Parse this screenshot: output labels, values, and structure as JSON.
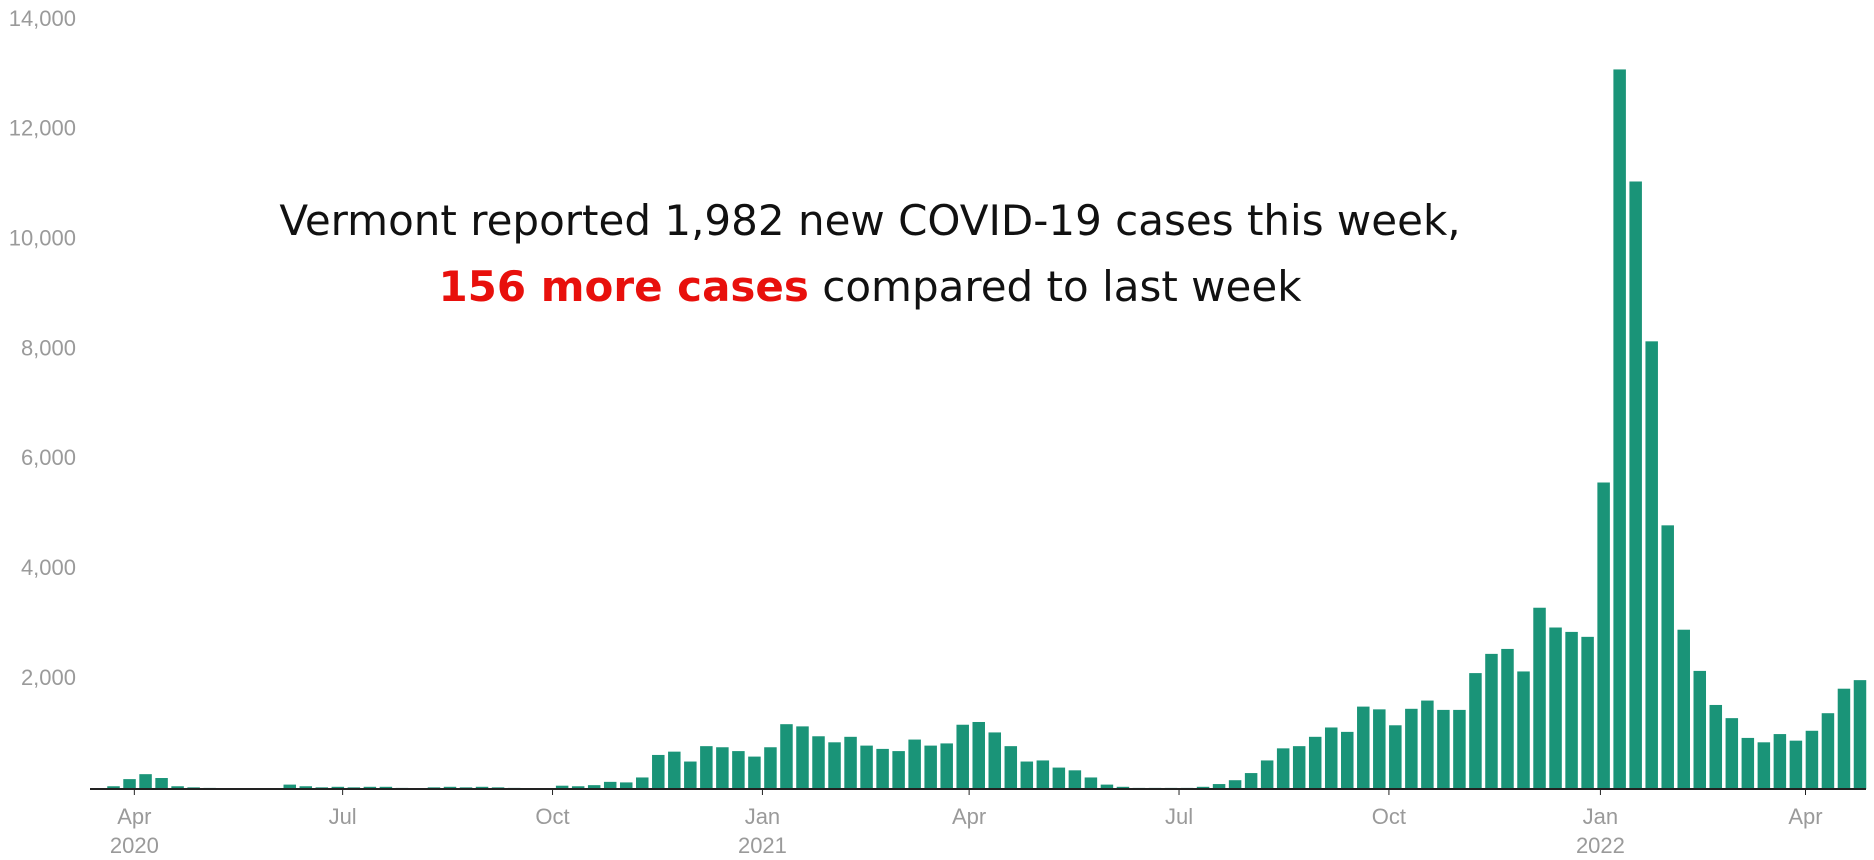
{
  "chart_data": {
    "type": "bar",
    "annotation": {
      "line1": "Vermont reported 1,982 new COVID-19 cases this week,",
      "highlight": "156 more cases",
      "rest": "compared to last week",
      "highlight_color": "#e8100c"
    },
    "color": "#1a9478",
    "values": [
      50,
      180,
      270,
      200,
      50,
      30,
      20,
      0,
      0,
      0,
      0,
      80,
      50,
      30,
      40,
      30,
      40,
      40,
      20,
      10,
      30,
      40,
      30,
      40,
      30,
      20,
      0,
      10,
      60,
      50,
      70,
      130,
      120,
      210,
      620,
      680,
      500,
      780,
      760,
      690,
      590,
      760,
      1180,
      1140,
      960,
      850,
      950,
      790,
      730,
      690,
      900,
      790,
      830,
      1170,
      1220,
      1030,
      780,
      500,
      520,
      390,
      340,
      210,
      80,
      40,
      20,
      20,
      20,
      20,
      40,
      90,
      160,
      290,
      520,
      740,
      780,
      950,
      1120,
      1040,
      1500,
      1450,
      1160,
      1460,
      1610,
      1440,
      1440,
      2110,
      2460,
      2550,
      2140,
      3300,
      2940,
      2860,
      2770,
      5580,
      13100,
      11060,
      8150,
      4800,
      2900,
      2150,
      1530,
      1290,
      930,
      850,
      1000,
      880,
      1060,
      1380,
      1826,
      1982
    ],
    "xlim": [
      -0.5,
      109.5
    ],
    "xticks": [
      {
        "value": 1.3,
        "label": "Apr",
        "year": "2020"
      },
      {
        "value": 14.3,
        "label": "Jul"
      },
      {
        "value": 27.4,
        "label": "Oct"
      },
      {
        "value": 40.5,
        "label": "Jan",
        "year": "2021"
      },
      {
        "value": 53.4,
        "label": "Apr"
      },
      {
        "value": 66.5,
        "label": "Jul"
      },
      {
        "value": 79.6,
        "label": "Oct"
      },
      {
        "value": 92.8,
        "label": "Jan",
        "year": "2022"
      },
      {
        "value": 105.6,
        "label": "Apr"
      }
    ],
    "ylim": [
      0,
      14000
    ],
    "yticks": [
      {
        "value": 2000,
        "label": "2,000"
      },
      {
        "value": 4000,
        "label": "4,000"
      },
      {
        "value": 6000,
        "label": "6,000"
      },
      {
        "value": 8000,
        "label": "8,000"
      },
      {
        "value": 10000,
        "label": "10,000"
      },
      {
        "value": 12000,
        "label": "12,000"
      },
      {
        "value": 14000,
        "label": "14,000"
      }
    ],
    "grid": false
  }
}
